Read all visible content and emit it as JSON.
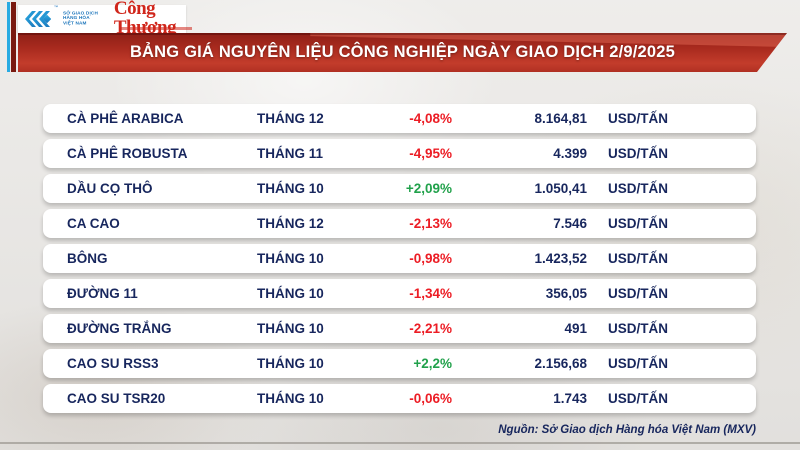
{
  "header": {
    "mxv_logo": {
      "lines": [
        "SỞ GIAO DỊCH",
        "HÀNG HÓA",
        "VIỆT NAM"
      ],
      "trademark": "™"
    },
    "congthuong_logo": "Công Thương",
    "title": "BẢNG GIÁ NGUYÊN LIỆU CÔNG NGHIỆP NGÀY GIAO DỊCH 2/9/2025"
  },
  "chart_data": {
    "type": "table",
    "title": "BẢNG GIÁ NGUYÊN LIỆU CÔNG NGHIỆP NGÀY GIAO DỊCH 2/9/2025",
    "rows": [
      {
        "commodity": "CÀ PHÊ ARABICA",
        "contract_month": "THÁNG 12",
        "change_pct": "-4,08%",
        "direction": "down",
        "price": "8.164,81",
        "unit": "USD/TẤN"
      },
      {
        "commodity": "CÀ PHÊ ROBUSTA",
        "contract_month": "THÁNG 11",
        "change_pct": "-4,95%",
        "direction": "down",
        "price": "4.399",
        "unit": "USD/TẤN"
      },
      {
        "commodity": "DẦU CỌ THÔ",
        "contract_month": "THÁNG 10",
        "change_pct": "+2,09%",
        "direction": "up",
        "price": "1.050,41",
        "unit": "USD/TẤN"
      },
      {
        "commodity": "CA CAO",
        "contract_month": "THÁNG 12",
        "change_pct": "-2,13%",
        "direction": "down",
        "price": "7.546",
        "unit": "USD/TẤN"
      },
      {
        "commodity": "BÔNG",
        "contract_month": "THÁNG 10",
        "change_pct": "-0,98%",
        "direction": "down",
        "price": "1.423,52",
        "unit": "USD/TẤN"
      },
      {
        "commodity": "ĐƯỜNG 11",
        "contract_month": "THÁNG 10",
        "change_pct": "-1,34%",
        "direction": "down",
        "price": "356,05",
        "unit": "USD/TẤN"
      },
      {
        "commodity": "ĐƯỜNG TRẮNG",
        "contract_month": "THÁNG 10",
        "change_pct": "-2,21%",
        "direction": "down",
        "price": "491",
        "unit": "USD/TẤN"
      },
      {
        "commodity": "CAO SU RSS3",
        "contract_month": "THÁNG 10",
        "change_pct": "+2,2%",
        "direction": "up",
        "price": "2.156,68",
        "unit": "USD/TẤN"
      },
      {
        "commodity": "CAO SU TSR20",
        "contract_month": "THÁNG 10",
        "change_pct": "-0,06%",
        "direction": "down",
        "price": "1.743",
        "unit": "USD/TẤN"
      }
    ]
  },
  "footer": {
    "source": "Nguồn: Sở Giao dịch Hàng hóa Việt Nam (MXV)"
  },
  "colors": {
    "up_green": "#21A14B",
    "down_red": "#EC1C24",
    "text_navy": "#17265D",
    "banner_red_light": "#C33C2B",
    "accent_cyan": "#29ABE2",
    "logo_red": "#D0261B"
  }
}
